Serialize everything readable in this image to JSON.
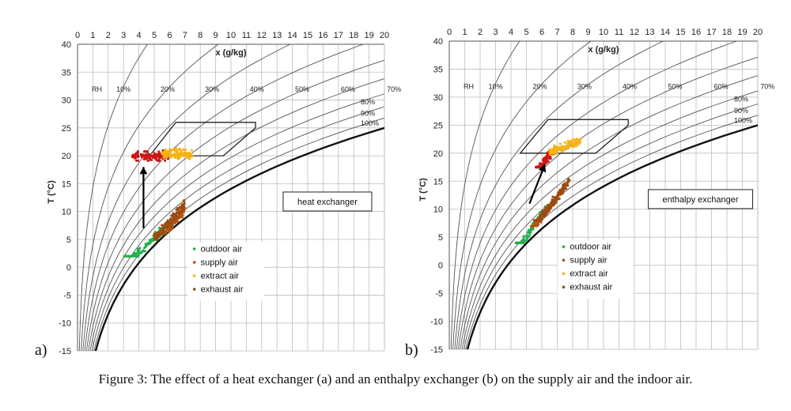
{
  "caption": "Figure 3: The effect of a heat exchanger (a) and an enthalpy exchanger (b) on the supply air and the indoor air.",
  "colors": {
    "outdoor": "#22b04a",
    "supply": "#b5520f",
    "extract": "#f5b316",
    "exhaust": "#9a4a12",
    "indoor": "#cc1515"
  },
  "chart_data": [
    {
      "type": "scatter",
      "panel_label": "a)",
      "annotation": "heat exchanger",
      "xlabel": "x (g/kg)",
      "ylabel": "T (°C)",
      "xlim": [
        0,
        20
      ],
      "ylim": [
        -15,
        40
      ],
      "x_ticks": [
        "0",
        "1",
        "2",
        "3",
        "4",
        "5",
        "6",
        "7",
        "8",
        "9",
        "10",
        "11",
        "12",
        "13",
        "14",
        "15",
        "16",
        "17",
        "18",
        "19",
        "20"
      ],
      "y_ticks": [
        "-15",
        "-10",
        "-5",
        "0",
        "5",
        "10",
        "15",
        "20",
        "25",
        "30",
        "35",
        "40"
      ],
      "rh_prefix": "RH",
      "rh_labels": [
        "10%",
        "20%",
        "30%",
        "40%",
        "50%",
        "60%",
        "70%",
        "80%",
        "90%",
        "100%"
      ],
      "legend": [
        "outdoor air",
        "supply air",
        "extract air",
        "exhaust air"
      ],
      "arrow": {
        "from": [
          4.3,
          7
        ],
        "to": [
          4.3,
          18
        ]
      },
      "comfort_zone": [
        [
          4.7,
          20
        ],
        [
          6.4,
          26
        ],
        [
          11.6,
          26
        ],
        [
          11.6,
          25
        ],
        [
          9.5,
          20
        ]
      ],
      "series": [
        {
          "name": "outdoor air",
          "x_range": [
            3.0,
            6.3
          ],
          "y_range": [
            2,
            10
          ],
          "ty_base": -8,
          "ty_slope": 2.65
        },
        {
          "name": "supply air",
          "x_range": [
            5.0,
            7.0
          ],
          "y_range": [
            6,
            12
          ],
          "ty_base": -13,
          "ty_slope": 3.35
        },
        {
          "name": "extract air",
          "x_range": [
            5.5,
            7.5
          ],
          "y_range": [
            19,
            21.5
          ],
          "ty_base": 20.3,
          "ty_slope": 0
        },
        {
          "name": "exhaust air",
          "x_range": [
            5.0,
            7.0
          ],
          "y_range": [
            5,
            12
          ],
          "ty_base": -11,
          "ty_slope": 3.2
        },
        {
          "name": "indoor air",
          "x_range": [
            3.5,
            6.0
          ],
          "y_range": [
            18.5,
            21
          ],
          "ty_base": 20.0,
          "ty_slope": 0
        }
      ]
    },
    {
      "type": "scatter",
      "panel_label": "b)",
      "annotation": "enthalpy exchanger",
      "xlabel": "x (g/kg)",
      "ylabel": "T (°C)",
      "xlim": [
        0,
        20
      ],
      "ylim": [
        -15,
        40
      ],
      "x_ticks": [
        "0",
        "1",
        "2",
        "3",
        "4",
        "5",
        "6",
        "7",
        "8",
        "9",
        "10",
        "11",
        "12",
        "13",
        "14",
        "15",
        "16",
        "17",
        "18",
        "19",
        "20"
      ],
      "y_ticks": [
        "-15",
        "-10",
        "-5",
        "0",
        "5",
        "10",
        "15",
        "20",
        "25",
        "30",
        "35",
        "40"
      ],
      "rh_prefix": "RH",
      "rh_labels": [
        "10%",
        "20%",
        "30%",
        "40%",
        "50%",
        "60%",
        "70%",
        "80%",
        "90%",
        "100%"
      ],
      "legend": [
        "outdoor air",
        "supply air",
        "extract air",
        "exhaust air"
      ],
      "arrow": {
        "from": [
          5.2,
          11
        ],
        "to": [
          6.2,
          18
        ]
      },
      "comfort_zone": [
        [
          4.6,
          20
        ],
        [
          6.4,
          26
        ],
        [
          11.6,
          26
        ],
        [
          11.6,
          25
        ],
        [
          9.5,
          20
        ]
      ],
      "series": [
        {
          "name": "outdoor air",
          "x_range": [
            4.3,
            6.3
          ],
          "y_range": [
            4,
            12
          ],
          "ty_base": -15,
          "ty_slope": 4.0
        },
        {
          "name": "supply air",
          "x_range": [
            5.3,
            7.5
          ],
          "y_range": [
            7,
            16
          ],
          "ty_base": -13,
          "ty_slope": 3.6
        },
        {
          "name": "extract air",
          "x_range": [
            6.5,
            8.5
          ],
          "y_range": [
            19.5,
            22.5
          ],
          "ty_base": 13,
          "ty_slope": 1.1
        },
        {
          "name": "exhaust air",
          "x_range": [
            5.5,
            7.8
          ],
          "y_range": [
            8,
            16
          ],
          "ty_base": -13,
          "ty_slope": 3.6
        },
        {
          "name": "indoor air",
          "x_range": [
            5.6,
            7.0
          ],
          "y_range": [
            17.5,
            21
          ],
          "ty_base": 0,
          "ty_slope": 3.0
        }
      ]
    }
  ]
}
